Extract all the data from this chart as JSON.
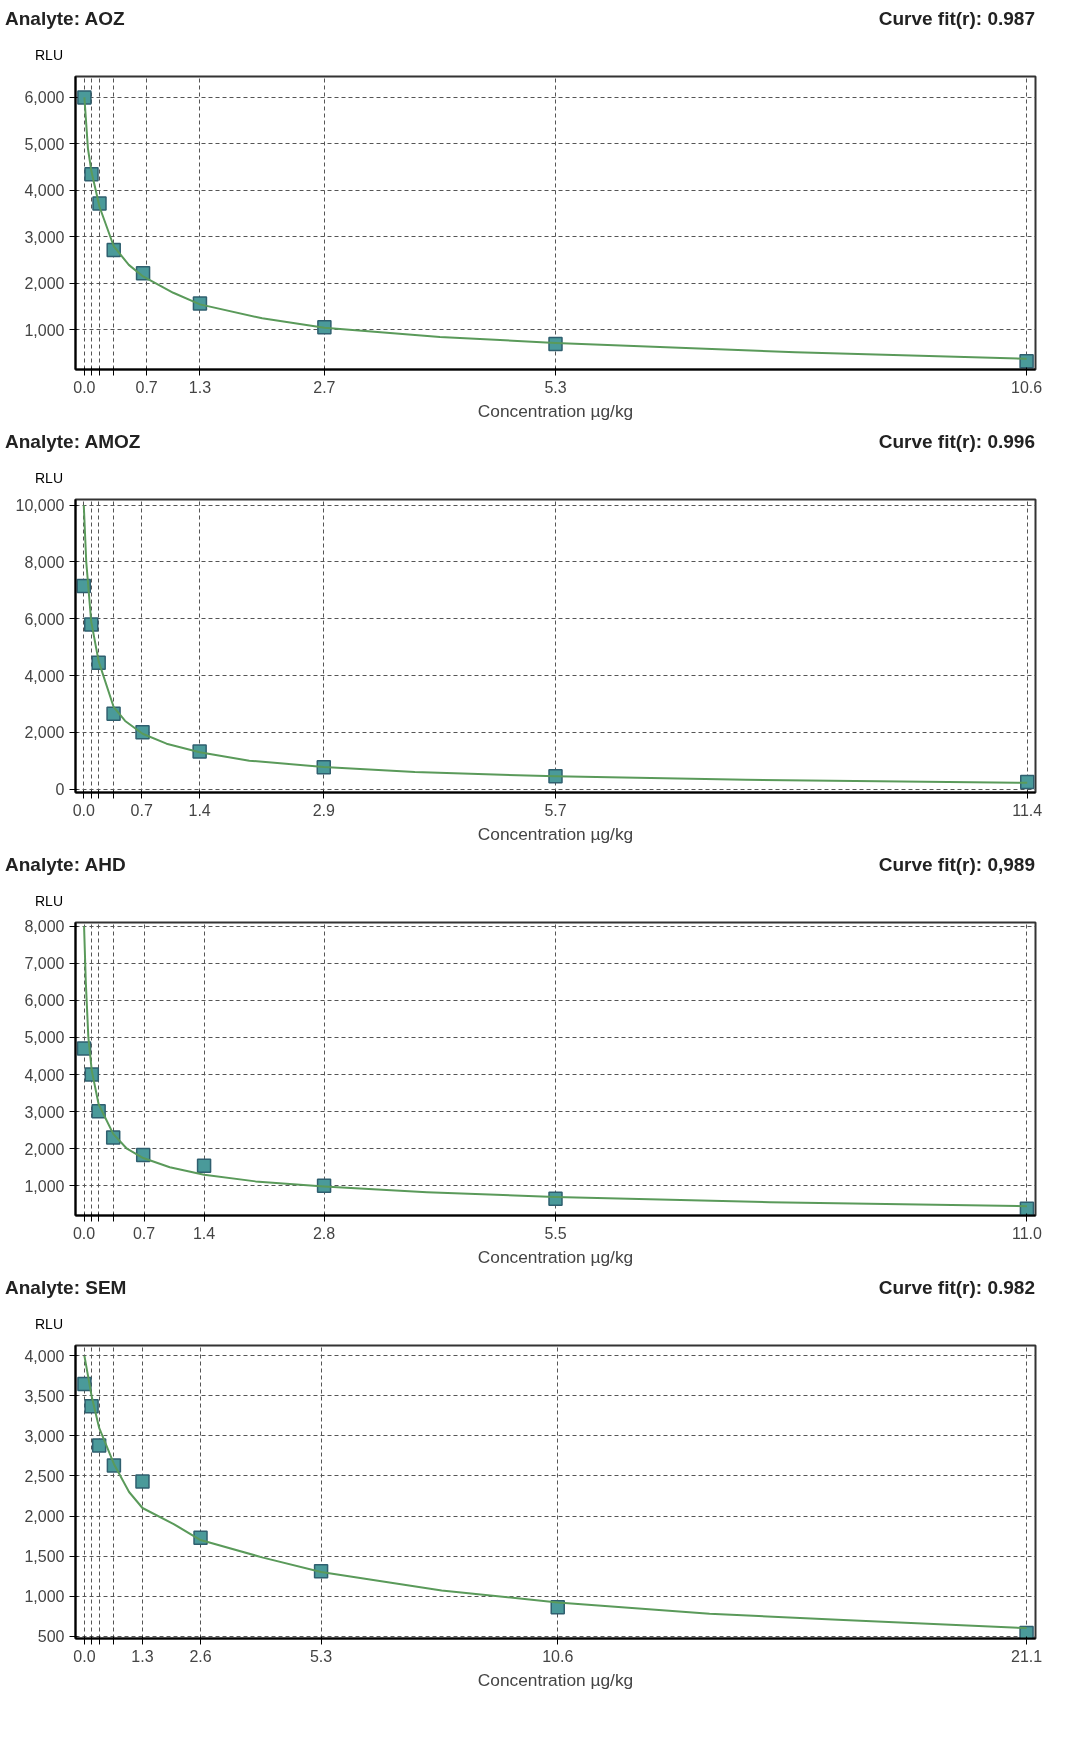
{
  "chart_data": [
    {
      "type": "scatter",
      "title": "Analyte: AOZ",
      "subtitle": "Curve fit(r): 0.987",
      "xlabel": "Concentration µg/kg",
      "ylabel": "RLU",
      "grid": true,
      "xlim": [
        -0.1,
        10.7
      ],
      "ylim": [
        150,
        6450
      ],
      "xticks": [
        {
          "value": 0,
          "label": "0.0"
        },
        {
          "value": 0.08,
          "label": null
        },
        {
          "value": 0.17,
          "label": null
        },
        {
          "value": 0.33,
          "label": null
        },
        0.7,
        1.3,
        2.7,
        5.3,
        10.6
      ],
      "yticks": [
        {
          "value": 1000,
          "label": "1,000"
        },
        {
          "value": 2000,
          "label": "2,000"
        },
        {
          "value": 3000,
          "label": "3,000"
        },
        {
          "value": 4000,
          "label": "4,000"
        },
        {
          "value": 5000,
          "label": "5,000"
        },
        {
          "value": 6000,
          "label": "6,000"
        }
      ],
      "series": [
        {
          "marker": "square",
          "color": "#4a9a9a",
          "x": [
            0,
            0.08,
            0.17,
            0.33,
            0.66,
            1.3,
            2.7,
            5.3,
            10.6
          ],
          "values": [
            6000,
            4350,
            3720,
            2720,
            2220,
            1570,
            1060,
            700,
            330
          ]
        },
        {
          "type": "line",
          "color": "#5a9a5a",
          "x": [
            0,
            0.04,
            0.08,
            0.17,
            0.33,
            0.5,
            0.66,
            1.0,
            1.3,
            2.0,
            2.7,
            4.0,
            5.3,
            8.0,
            10.6
          ],
          "values": [
            6000,
            4900,
            4400,
            3650,
            2800,
            2400,
            2150,
            1800,
            1550,
            1250,
            1050,
            850,
            720,
            520,
            380
          ]
        }
      ]
    },
    {
      "type": "scatter",
      "title": "Analyte: AMOZ",
      "subtitle": "Curve fit(r): 0.996",
      "xlabel": "Concentration µg/kg",
      "ylabel": "RLU",
      "grid": true,
      "xlim": [
        -0.1,
        11.5
      ],
      "ylim": [
        -120,
        10200
      ],
      "xticks": [
        {
          "value": 0,
          "label": "0.0"
        },
        {
          "value": 0.09,
          "label": null
        },
        {
          "value": 0.18,
          "label": null
        },
        {
          "value": 0.36,
          "label": null
        },
        0.7,
        1.4,
        2.9,
        5.7,
        11.4
      ],
      "yticks": [
        0,
        {
          "value": 2000,
          "label": "2,000"
        },
        {
          "value": 4000,
          "label": "4,000"
        },
        {
          "value": 6000,
          "label": "6,000"
        },
        {
          "value": 8000,
          "label": "8,000"
        },
        {
          "value": 10000,
          "label": "10,000"
        }
      ],
      "series": [
        {
          "marker": "square",
          "color": "#4a9a9a",
          "x": [
            0,
            0.09,
            0.18,
            0.36,
            0.71,
            1.4,
            2.9,
            5.7,
            11.4
          ],
          "values": [
            7150,
            5800,
            4450,
            2650,
            2000,
            1320,
            770,
            450,
            250
          ]
        },
        {
          "type": "line",
          "color": "#5a9a5a",
          "x": [
            0,
            0.03,
            0.09,
            0.18,
            0.36,
            0.5,
            0.71,
            1.0,
            1.4,
            2.0,
            2.9,
            4.0,
            5.7,
            8.0,
            11.4
          ],
          "values": [
            10000,
            8000,
            5900,
            4500,
            2900,
            2400,
            1950,
            1600,
            1300,
            1000,
            780,
            600,
            450,
            330,
            220
          ]
        }
      ]
    },
    {
      "type": "scatter",
      "title": "Analyte: AHD",
      "subtitle": "Curve fit(r): 0,989",
      "xlabel": "Concentration µg/kg",
      "ylabel": "RLU",
      "grid": true,
      "xlim": [
        -0.1,
        11.1
      ],
      "ylim": [
        200,
        8100
      ],
      "xticks": [
        {
          "value": 0,
          "label": "0.0"
        },
        {
          "value": 0.09,
          "label": null
        },
        {
          "value": 0.17,
          "label": null
        },
        {
          "value": 0.34,
          "label": null
        },
        0.7,
        1.4,
        2.8,
        5.5,
        {
          "value": 11,
          "label": "11.0"
        }
      ],
      "yticks": [
        {
          "value": 1000,
          "label": "1,000"
        },
        {
          "value": 2000,
          "label": "2,000"
        },
        {
          "value": 3000,
          "label": "3,000"
        },
        {
          "value": 4000,
          "label": "4,000"
        },
        {
          "value": 5000,
          "label": "5,000"
        },
        {
          "value": 6000,
          "label": "6,000"
        },
        {
          "value": 7000,
          "label": "7,000"
        },
        {
          "value": 8000,
          "label": "8,000"
        }
      ],
      "series": [
        {
          "marker": "square",
          "color": "#4a9a9a",
          "x": [
            0,
            0.09,
            0.17,
            0.34,
            0.69,
            1.4,
            2.8,
            5.5,
            11.0
          ],
          "values": [
            4700,
            4000,
            3010,
            2300,
            1830,
            1540,
            1000,
            650,
            380
          ]
        },
        {
          "type": "line",
          "color": "#5a9a5a",
          "x": [
            0,
            0.02,
            0.05,
            0.09,
            0.17,
            0.34,
            0.5,
            0.69,
            1.0,
            1.4,
            2.0,
            2.8,
            4.0,
            5.5,
            8.0,
            11.0
          ],
          "values": [
            8000,
            6500,
            5000,
            4100,
            3200,
            2400,
            2000,
            1750,
            1500,
            1300,
            1120,
            980,
            830,
            700,
            560,
            450
          ]
        }
      ]
    },
    {
      "type": "scatter",
      "title": "Analyte: SEM",
      "subtitle": "Curve fit(r): 0.982",
      "xlabel": "Concentration µg/kg",
      "ylabel": "RLU",
      "grid": true,
      "xlim": [
        -0.2,
        21.3
      ],
      "ylim": [
        470,
        4130
      ],
      "xticks": [
        {
          "value": 0,
          "label": "0.0"
        },
        {
          "value": 0.16,
          "label": null
        },
        {
          "value": 0.33,
          "label": null
        },
        {
          "value": 0.66,
          "label": null
        },
        1.3,
        2.6,
        5.3,
        10.6,
        21.1
      ],
      "yticks": [
        500,
        {
          "value": 1000,
          "label": "1,000"
        },
        {
          "value": 1500,
          "label": "1,500"
        },
        {
          "value": 2000,
          "label": "2,000"
        },
        {
          "value": 2500,
          "label": "2,500"
        },
        {
          "value": 3000,
          "label": "3,000"
        },
        {
          "value": 3500,
          "label": "3,500"
        },
        {
          "value": 4000,
          "label": "4,000"
        }
      ],
      "series": [
        {
          "marker": "square",
          "color": "#4a9a9a",
          "x": [
            0,
            0.16,
            0.33,
            0.66,
            1.3,
            2.6,
            5.3,
            10.6,
            21.1
          ],
          "values": [
            3650,
            3370,
            2880,
            2630,
            2430,
            1730,
            1310,
            860,
            540
          ]
        },
        {
          "type": "line",
          "color": "#5a9a5a",
          "x": [
            0,
            0.16,
            0.33,
            0.66,
            1.0,
            1.3,
            2.0,
            2.6,
            4.0,
            5.3,
            8.0,
            10.6,
            14.0,
            17.0,
            21.1
          ],
          "values": [
            4000,
            3500,
            3100,
            2650,
            2300,
            2100,
            1900,
            1700,
            1480,
            1300,
            1070,
            920,
            780,
            700,
            600
          ]
        }
      ]
    }
  ]
}
